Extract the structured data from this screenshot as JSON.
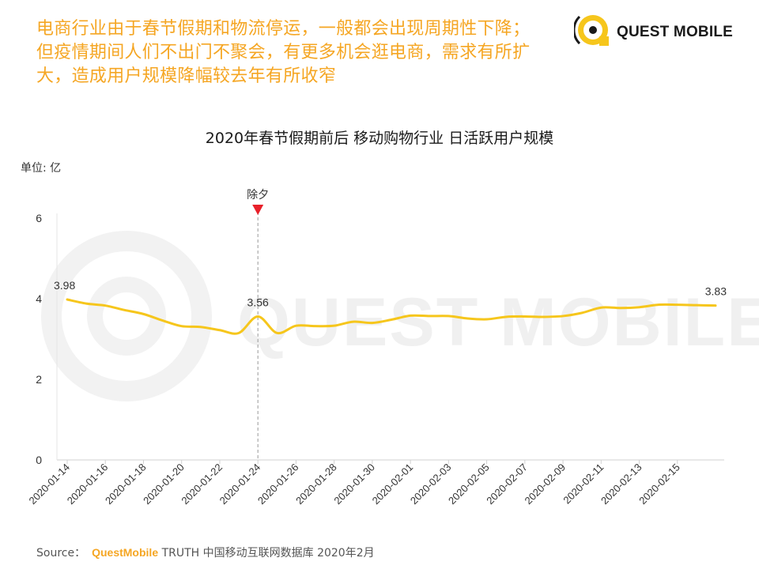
{
  "headline": {
    "line1": "电商行业由于春节假期和物流停运，一般都会出现周期性下降；",
    "line2": "但疫情期间人们不出门不聚会，有更多机会逛电商，需求有所扩",
    "line3": "大，造成用户规模降幅较去年有所收窄"
  },
  "logo": {
    "text": "QUEST MOBILE"
  },
  "watermark": "QUEST MOBILE",
  "source": {
    "label": "Source：",
    "brand": "QuestMobile",
    "rest": "TRUTH 中国移动互联网数据库 2020年2月"
  },
  "colors": {
    "accent": "#f5a623",
    "line": "#f6c61c",
    "marker": "#e8202a"
  },
  "chart_data": {
    "type": "line",
    "title": "2020年春节假期前后 移动购物行业 日活跃用户规模",
    "ylabel": "单位: 亿",
    "ylim": [
      0,
      6
    ],
    "yticks": [
      "0",
      "2",
      "4",
      "6"
    ],
    "grid": false,
    "x": [
      "2020-01-14",
      "2020-01-15",
      "2020-01-16",
      "2020-01-17",
      "2020-01-18",
      "2020-01-19",
      "2020-01-20",
      "2020-01-21",
      "2020-01-22",
      "2020-01-23",
      "2020-01-24",
      "2020-01-25",
      "2020-01-26",
      "2020-01-27",
      "2020-01-28",
      "2020-01-29",
      "2020-01-30",
      "2020-01-31",
      "2020-02-01",
      "2020-02-02",
      "2020-02-03",
      "2020-02-04",
      "2020-02-05",
      "2020-02-06",
      "2020-02-07",
      "2020-02-08",
      "2020-02-09",
      "2020-02-10",
      "2020-02-11",
      "2020-02-12",
      "2020-02-13",
      "2020-02-14",
      "2020-02-15",
      "2020-02-16",
      "2020-02-17"
    ],
    "xtick_labels": [
      "2020-01-14",
      "2020-01-16",
      "2020-01-18",
      "2020-01-20",
      "2020-01-22",
      "2020-01-24",
      "2020-01-26",
      "2020-01-28",
      "2020-01-30",
      "2020-02-01",
      "2020-02-03",
      "2020-02-05",
      "2020-02-07",
      "2020-02-09",
      "2020-02-11",
      "2020-02-13",
      "2020-02-15"
    ],
    "series": [
      {
        "values": [
          3.98,
          3.88,
          3.83,
          3.72,
          3.62,
          3.46,
          3.32,
          3.3,
          3.22,
          3.15,
          3.56,
          3.15,
          3.33,
          3.32,
          3.33,
          3.43,
          3.4,
          3.48,
          3.58,
          3.57,
          3.57,
          3.51,
          3.49,
          3.55,
          3.56,
          3.55,
          3.57,
          3.65,
          3.78,
          3.77,
          3.79,
          3.85,
          3.85,
          3.84,
          3.83
        ]
      }
    ],
    "annotations": [
      {
        "x": "2020-01-24",
        "label": "除夕",
        "type": "vertical-marker"
      }
    ],
    "data_labels": [
      {
        "x": "2020-01-14",
        "text": "3.98"
      },
      {
        "x": "2020-01-24",
        "text": "3.56"
      },
      {
        "x": "2020-02-17",
        "text": "3.83"
      }
    ]
  }
}
